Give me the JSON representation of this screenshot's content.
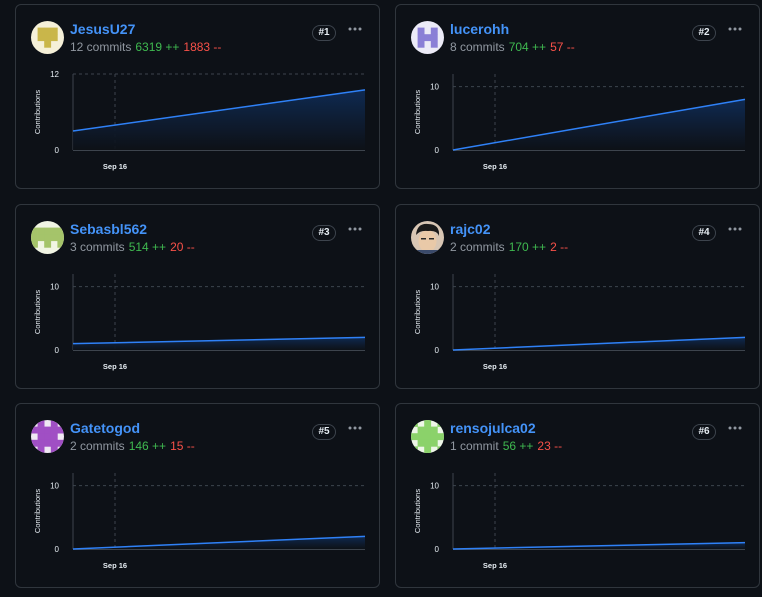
{
  "contributors": [
    {
      "username": "JesusU27",
      "commits": "12 commits",
      "additions": "6319 ++",
      "deletions": "1883 --",
      "rank": "#1",
      "avatar": {
        "bg": "#f5f0d8",
        "fg": "#c9b64a",
        "pattern": [
          "00000",
          "01110",
          "01110",
          "00100",
          "00000"
        ]
      }
    },
    {
      "username": "lucerohh",
      "commits": "8 commits",
      "additions": "704 ++",
      "deletions": "57 --",
      "rank": "#2",
      "avatar": {
        "bg": "#ecebf7",
        "fg": "#8a7fd6",
        "pattern": [
          "00000",
          "01010",
          "01110",
          "01010",
          "00000"
        ]
      }
    },
    {
      "username": "Sebasbl562",
      "commits": "3 commits",
      "additions": "514 ++",
      "deletions": "20 --",
      "rank": "#3",
      "avatar": {
        "bg": "#f1f5e4",
        "fg": "#a5c46a",
        "pattern": [
          "00000",
          "11111",
          "11111",
          "10101",
          "00000"
        ]
      }
    },
    {
      "username": "rajc02",
      "commits": "2 commits",
      "additions": "170 ++",
      "deletions": "2 --",
      "rank": "#4",
      "avatar": {
        "bg": "#d8c6b4",
        "fg": "#1a1a1a",
        "pattern": "photo"
      }
    },
    {
      "username": "Gatetogod",
      "commits": "2 commits",
      "additions": "146 ++",
      "deletions": "15 --",
      "rank": "#5",
      "avatar": {
        "bg": "#efe8f3",
        "fg": "#a04fc4",
        "pattern": [
          "01010",
          "11111",
          "01110",
          "11111",
          "01010"
        ]
      }
    },
    {
      "username": "rensojulca02",
      "commits": "1 commit",
      "additions": "56 ++",
      "deletions": "23 --",
      "rank": "#6",
      "avatar": {
        "bg": "#eef6e8",
        "fg": "#8bd26a",
        "pattern": [
          "10101",
          "01110",
          "11111",
          "01110",
          "10101"
        ]
      }
    }
  ],
  "more_icon": "kebab-horizontal-icon",
  "colors": {
    "line": "#2f81f7",
    "fill_top": "#0f2a52",
    "grid": "#3d444d",
    "axis_text": "#e6edf3"
  },
  "chart_data": [
    {
      "type": "area",
      "ylabel": "Contributions",
      "x_tick_label": "Sep 16",
      "ylim": [
        0,
        12
      ],
      "y_ticks": [
        0,
        12
      ],
      "start": 3,
      "end": 9.5
    },
    {
      "type": "area",
      "ylabel": "Contributions",
      "x_tick_label": "Sep 16",
      "ylim": [
        0,
        12
      ],
      "y_ticks": [
        0,
        10
      ],
      "start": 0,
      "end": 8
    },
    {
      "type": "area",
      "ylabel": "Contributions",
      "x_tick_label": "Sep 16",
      "ylim": [
        0,
        12
      ],
      "y_ticks": [
        0,
        10
      ],
      "start": 1,
      "end": 2
    },
    {
      "type": "area",
      "ylabel": "Contributions",
      "x_tick_label": "Sep 16",
      "ylim": [
        0,
        12
      ],
      "y_ticks": [
        0,
        10
      ],
      "start": 0,
      "end": 2
    },
    {
      "type": "area",
      "ylabel": "Contributions",
      "x_tick_label": "Sep 16",
      "ylim": [
        0,
        12
      ],
      "y_ticks": [
        0,
        10
      ],
      "start": 0,
      "end": 2
    },
    {
      "type": "area",
      "ylabel": "Contributions",
      "x_tick_label": "Sep 16",
      "ylim": [
        0,
        12
      ],
      "y_ticks": [
        0,
        10
      ],
      "start": 0,
      "end": 1
    }
  ]
}
